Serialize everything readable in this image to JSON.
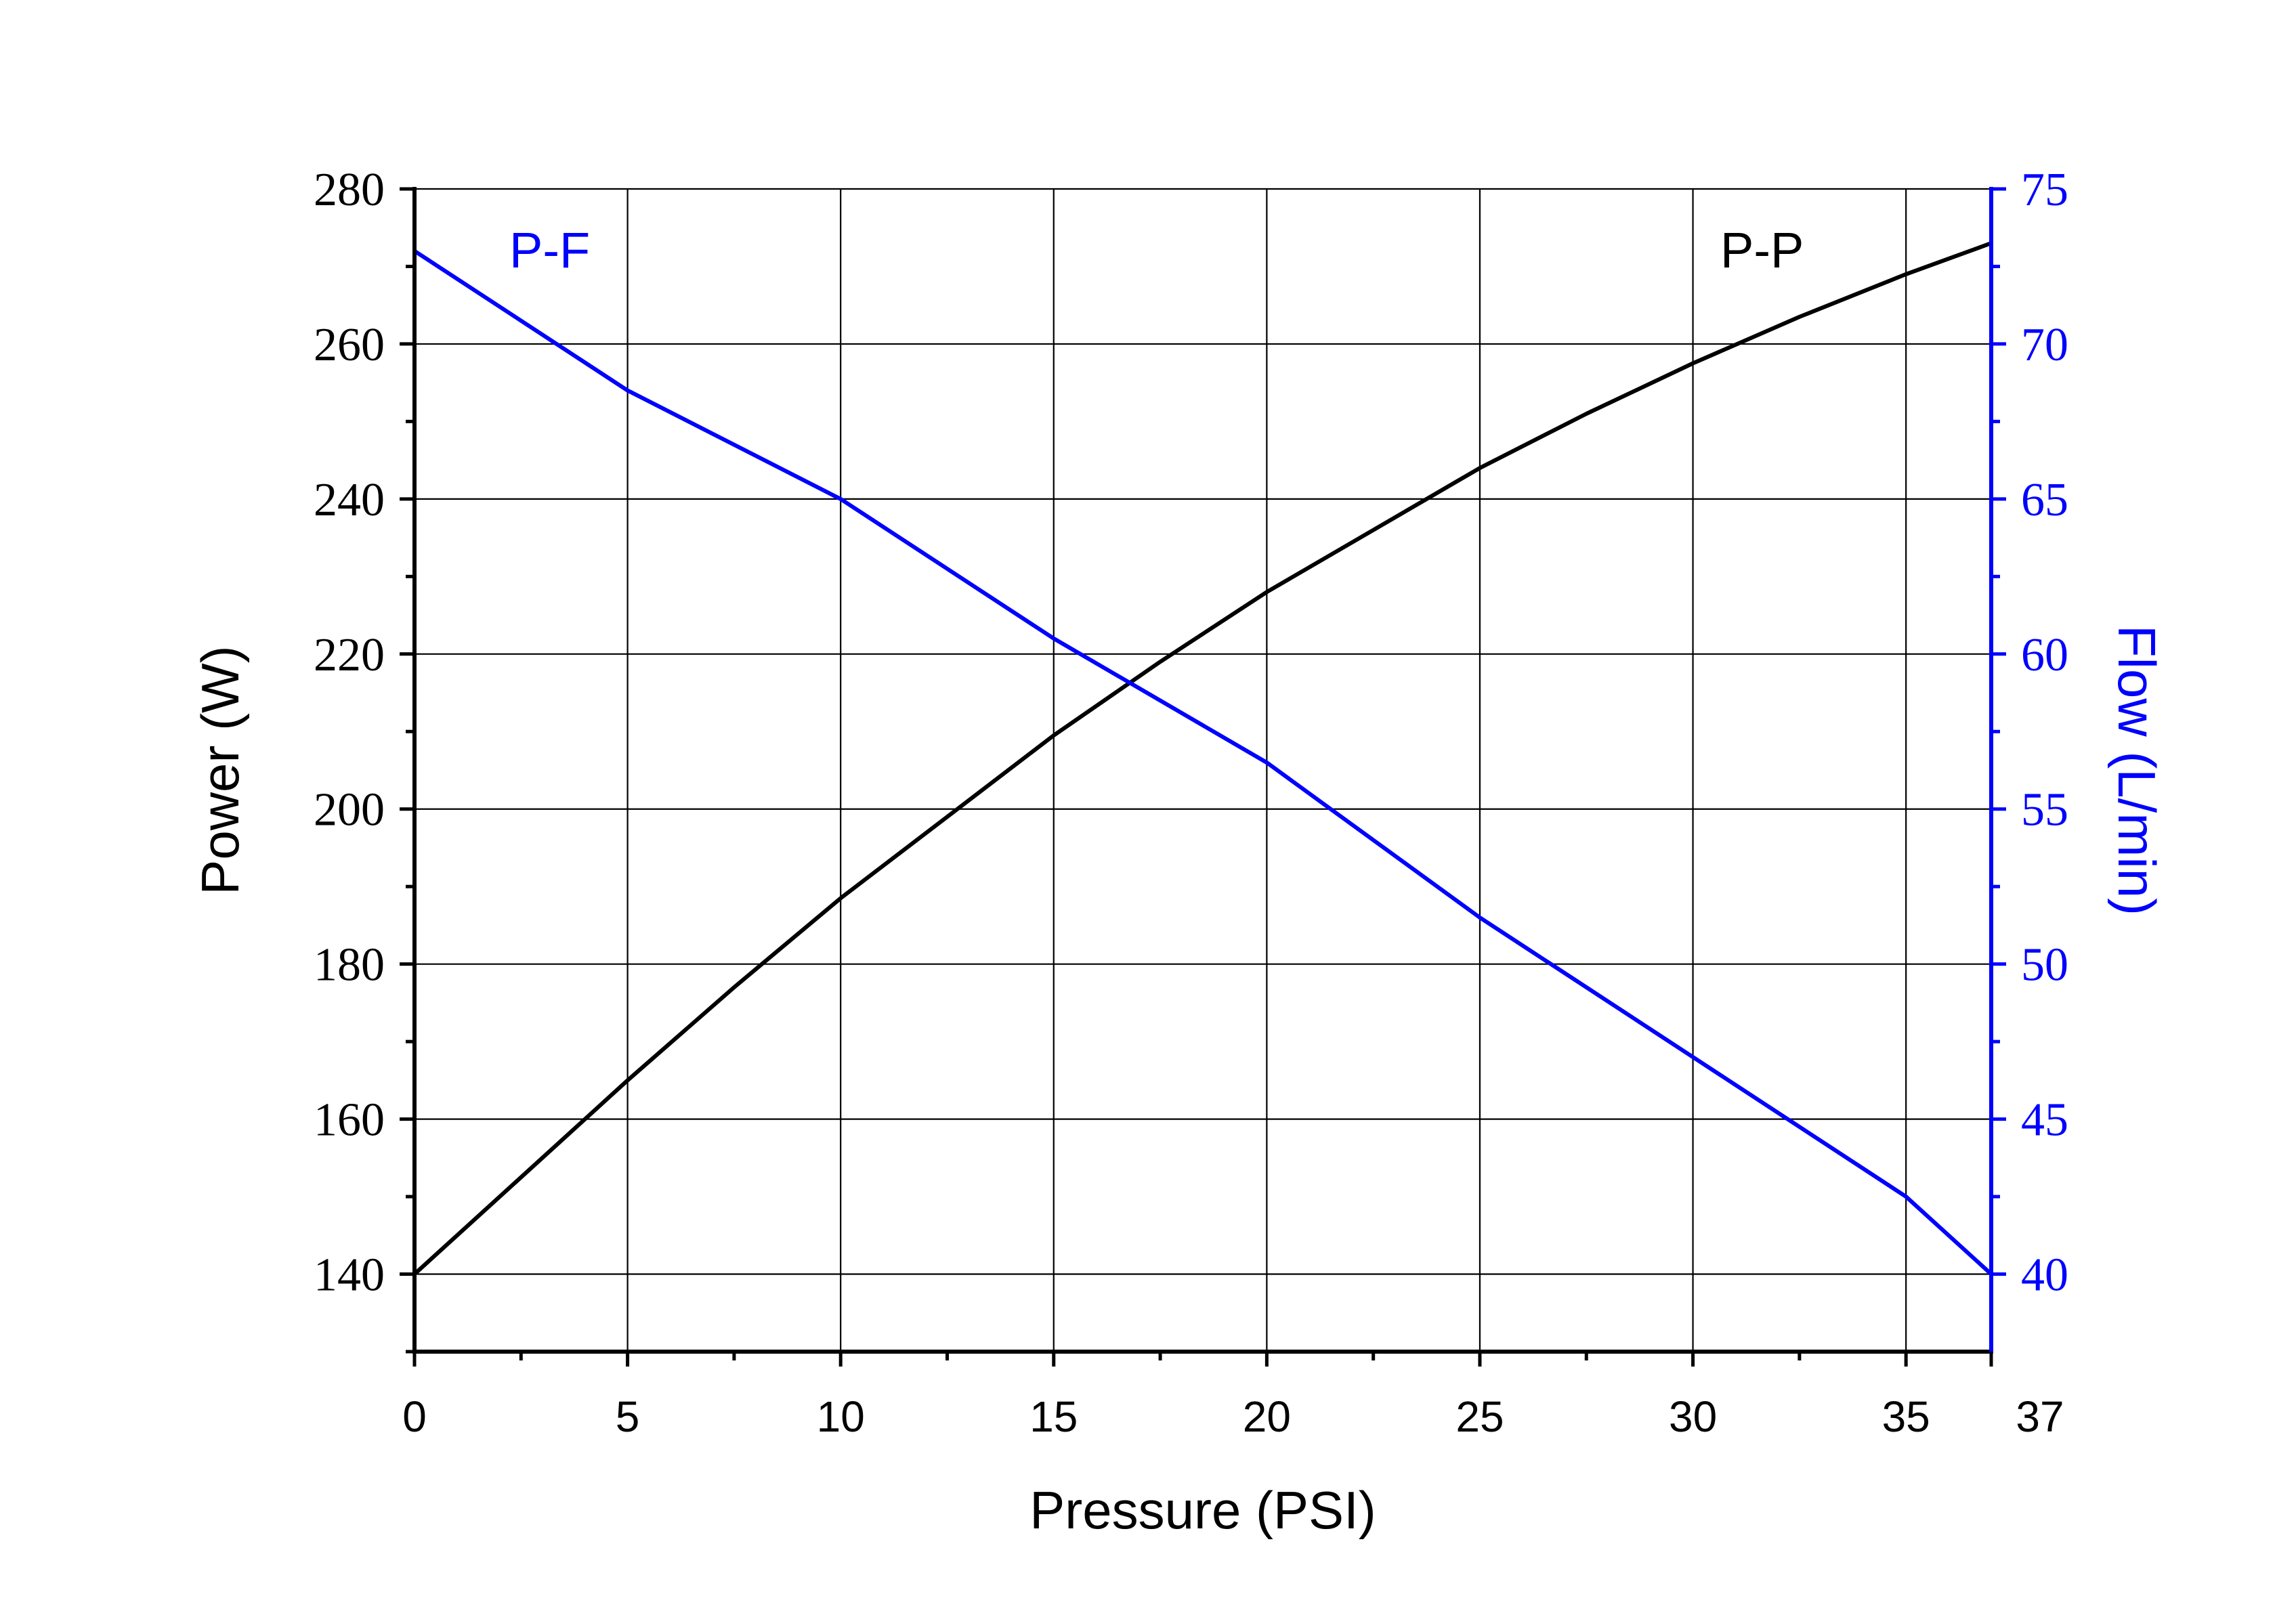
{
  "colors": {
    "primary": "#000000",
    "secondary": "#0000ff"
  },
  "chart_data": {
    "type": "line",
    "xlabel": "Pressure (PSI)",
    "xlim": [
      0,
      37
    ],
    "x_ticks": [
      "0",
      "5",
      "10",
      "15",
      "20",
      "25",
      "30",
      "35",
      "37"
    ],
    "y_left": {
      "label": "Power (W)",
      "lim": [
        130,
        280
      ],
      "ticks": [
        "140",
        "160",
        "180",
        "200",
        "220",
        "240",
        "260",
        "280"
      ]
    },
    "y_right": {
      "label": "Flow (L/min)",
      "lim": [
        37.5,
        75
      ],
      "ticks": [
        "40",
        "45",
        "50",
        "55",
        "60",
        "65",
        "70",
        "75"
      ]
    },
    "grid": true,
    "series": [
      {
        "name": "P-P",
        "axis": "left",
        "color": "#000000",
        "points": [
          [
            0,
            140
          ],
          [
            2.5,
            152.5
          ],
          [
            5,
            165
          ],
          [
            7.5,
            177
          ],
          [
            10,
            188.5
          ],
          [
            12.5,
            199
          ],
          [
            15,
            209.5
          ],
          [
            17.5,
            219
          ],
          [
            20,
            228
          ],
          [
            22.5,
            236
          ],
          [
            25,
            244
          ],
          [
            27.5,
            251
          ],
          [
            30,
            257.5
          ],
          [
            32.5,
            263.5
          ],
          [
            35,
            269
          ],
          [
            37,
            273
          ]
        ]
      },
      {
        "name": "P-F",
        "axis": "right",
        "color": "#0000ff",
        "points": [
          [
            0,
            73
          ],
          [
            5,
            68.5
          ],
          [
            10,
            65
          ],
          [
            15,
            60.5
          ],
          [
            20,
            56.5
          ],
          [
            25,
            51.5
          ],
          [
            30,
            47
          ],
          [
            35,
            42.5
          ],
          [
            37,
            40
          ]
        ]
      }
    ]
  }
}
